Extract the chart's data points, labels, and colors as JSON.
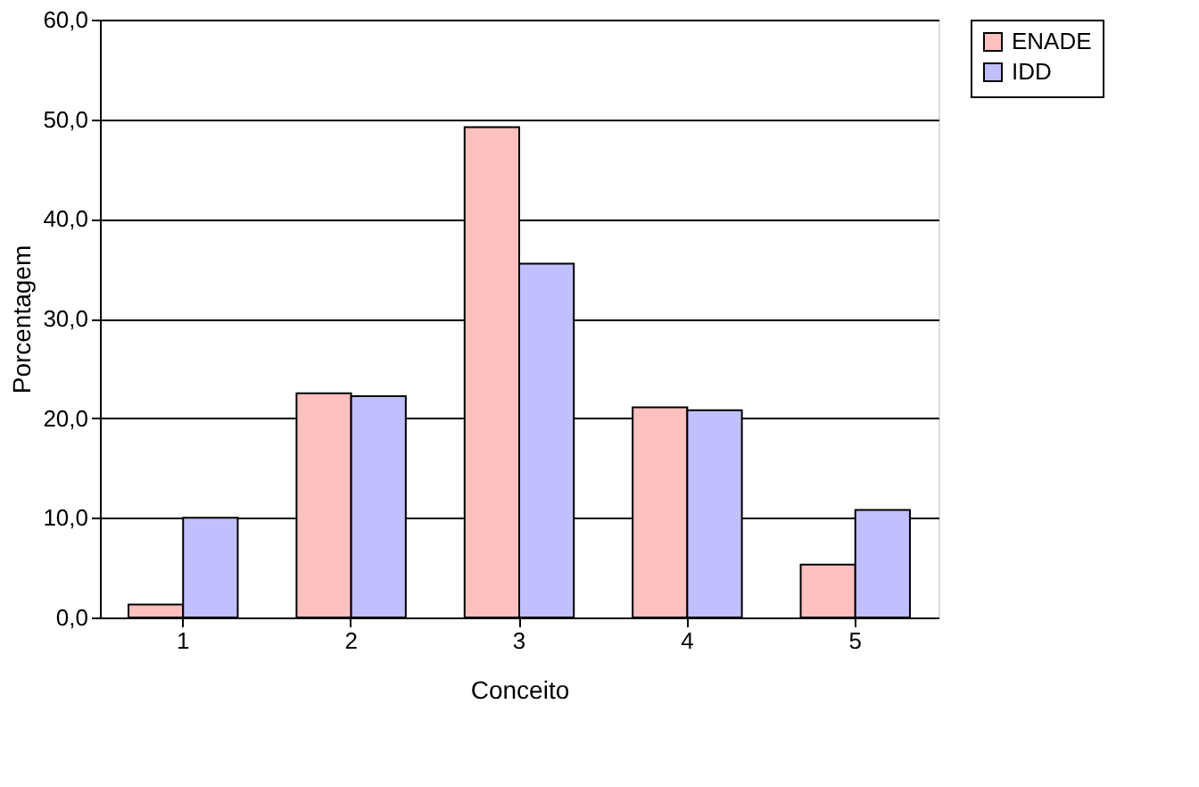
{
  "chart_data": {
    "type": "bar",
    "xlabel": "Conceito",
    "ylabel": "Porcentagem",
    "categories": [
      "1",
      "2",
      "3",
      "4",
      "5"
    ],
    "series": [
      {
        "name": "ENADE",
        "color": "#ffc0c0",
        "values": [
          1.3,
          22.5,
          49.2,
          21.1,
          5.3
        ]
      },
      {
        "name": "IDD",
        "color": "#c0c0ff",
        "values": [
          10.0,
          22.2,
          35.5,
          20.8,
          10.8
        ]
      }
    ],
    "ylim": [
      0,
      60
    ],
    "yticks": [
      {
        "value": 0,
        "label": "0,0"
      },
      {
        "value": 10,
        "label": "10,0"
      },
      {
        "value": 20,
        "label": "20,0"
      },
      {
        "value": 30,
        "label": "30,0"
      },
      {
        "value": 40,
        "label": "40,0"
      },
      {
        "value": 50,
        "label": "50,0"
      },
      {
        "value": 60,
        "label": "60,0"
      }
    ],
    "grid": "y",
    "legend": "right"
  }
}
